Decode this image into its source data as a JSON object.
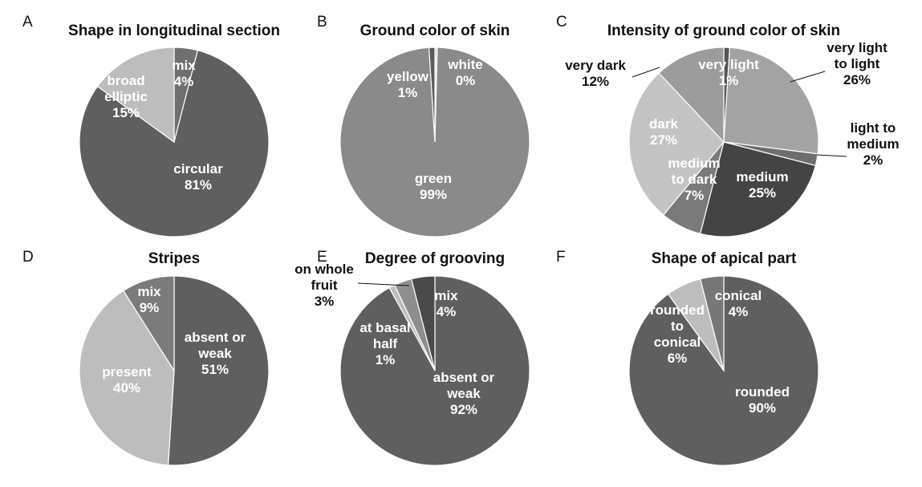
{
  "chart_data": [
    {
      "panel": "A",
      "title": "Shape in longitudinal section",
      "type": "pie",
      "slices": [
        {
          "label": [
            "mix",
            "4%"
          ],
          "value": 4,
          "color": "#6f6f6f"
        },
        {
          "label": [
            "circular",
            "81%"
          ],
          "value": 81,
          "color": "#5f5f5f"
        },
        {
          "label": [
            "broad",
            "elliptic",
            "15%"
          ],
          "value": 15,
          "color": "#bdbdbd"
        }
      ]
    },
    {
      "panel": "B",
      "title": "Ground color of skin",
      "type": "pie",
      "slices": [
        {
          "label": [
            "white",
            "0%"
          ],
          "value": 0.4,
          "color": "#dcdcdc"
        },
        {
          "label": [
            "green",
            "99%"
          ],
          "value": 98.6,
          "color": "#8a8a8a"
        },
        {
          "label": [
            "yellow",
            "1%"
          ],
          "value": 1,
          "color": "#5a5a5a"
        }
      ]
    },
    {
      "panel": "C",
      "title": "Intensity of ground color of skin",
      "type": "pie",
      "slices": [
        {
          "label": [
            "very light",
            "1%"
          ],
          "value": 1,
          "color": "#555555"
        },
        {
          "label": [
            "very light",
            "to light",
            "26%"
          ],
          "value": 26,
          "color": "#a3a3a3"
        },
        {
          "label": [
            "light to",
            "medium",
            "2%"
          ],
          "value": 2,
          "color": "#6e6e6e"
        },
        {
          "label": [
            "medium",
            "25%"
          ],
          "value": 25,
          "color": "#444444"
        },
        {
          "label": [
            "medium",
            "to dark",
            "7%"
          ],
          "value": 7,
          "color": "#7a7a7a"
        },
        {
          "label": [
            "dark",
            "27%"
          ],
          "value": 27,
          "color": "#c4c4c4"
        },
        {
          "label": [
            "very dark",
            "12%"
          ],
          "value": 12,
          "color": "#9c9c9c"
        }
      ]
    },
    {
      "panel": "D",
      "title": "Stripes",
      "type": "pie",
      "slices": [
        {
          "label": [
            "absent or",
            "weak",
            "51%"
          ],
          "value": 51,
          "color": "#5f5f5f"
        },
        {
          "label": [
            "present",
            "40%"
          ],
          "value": 40,
          "color": "#bdbdbd"
        },
        {
          "label": [
            "mix",
            "9%"
          ],
          "value": 9,
          "color": "#7b7b7b"
        }
      ]
    },
    {
      "panel": "E",
      "title": "Degree of grooving",
      "type": "pie",
      "slices": [
        {
          "label": [
            "absent or",
            "weak",
            "92%"
          ],
          "value": 92,
          "color": "#5f5f5f"
        },
        {
          "label": [
            "at basal",
            "half",
            "1%"
          ],
          "value": 1,
          "color": "#bdbdbd"
        },
        {
          "label": [
            "on whole",
            "fruit",
            "3%"
          ],
          "value": 3,
          "color": "#8e8e8e"
        },
        {
          "label": [
            "mix",
            "4%"
          ],
          "value": 4,
          "color": "#4a4a4a"
        }
      ]
    },
    {
      "panel": "F",
      "title": "Shape of apical part",
      "type": "pie",
      "slices": [
        {
          "label": [
            "rounded",
            "90%"
          ],
          "value": 90,
          "color": "#5f5f5f"
        },
        {
          "label": [
            "rounded",
            "to",
            "conical",
            "6%"
          ],
          "value": 6,
          "color": "#bdbdbd"
        },
        {
          "label": [
            "conical",
            "4%"
          ],
          "value": 4,
          "color": "#777777"
        }
      ]
    }
  ]
}
